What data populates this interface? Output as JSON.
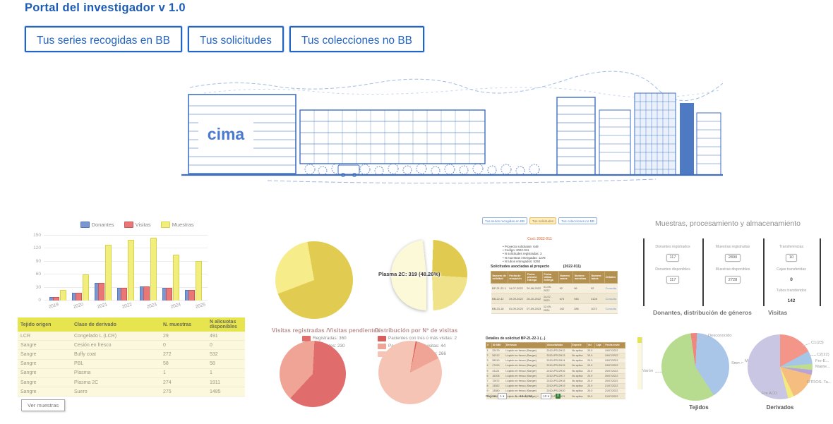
{
  "header": {
    "title": "Portal del investigador v 1.0"
  },
  "theme": {
    "accent_blue": "#2264c2",
    "header_yellow": "#e6e44f",
    "table_brown": "#b3904f"
  },
  "tabs": [
    {
      "label": "Tus series recogidas en BB"
    },
    {
      "label": "Tus solicitudes"
    },
    {
      "label": "Tus colecciones no BB"
    }
  ],
  "banner": {
    "logo": "cima"
  },
  "chart_data": [
    {
      "type": "bar",
      "categories": [
        "2019",
        "2020",
        "2021",
        "2022",
        "2023",
        "2024",
        "2025"
      ],
      "series": [
        {
          "name": "Donantes",
          "color": "#7b97cf",
          "border": "#5577bb",
          "values": [
            8,
            18,
            40,
            30,
            32,
            29,
            24
          ]
        },
        {
          "name": "Visitas",
          "color": "#e87777",
          "border": "#cc5555",
          "values": [
            8,
            18,
            40,
            30,
            33,
            29,
            24
          ]
        },
        {
          "name": "Muestras",
          "color": "#f2ee7d",
          "border": "#d8d24a",
          "values": [
            25,
            61,
            129,
            140,
            145,
            106,
            91
          ]
        }
      ],
      "ylim": [
        0,
        150
      ],
      "yticks": [
        0,
        30,
        60,
        90,
        120,
        150
      ],
      "legend_position": "top",
      "grid": true
    },
    {
      "type": "pie",
      "name": "muestras-pie",
      "slices": [
        {
          "label": "",
          "value": 72,
          "color": "#e2cb51"
        },
        {
          "label": "",
          "value": 28,
          "color": "#f6ec8a"
        }
      ]
    },
    {
      "type": "pie",
      "name": "plasma-2c-pie",
      "tooltip": "Plasma 2C: 319 (48.26%)",
      "slices": [
        {
          "label": "Plasma 2C",
          "value": 48.26,
          "color": "#fcf9d8",
          "exploded": true
        },
        {
          "label": "",
          "value": 27,
          "color": "#e1ca50"
        },
        {
          "label": "",
          "value": 24.74,
          "color": "#efe289"
        }
      ]
    },
    {
      "type": "pie",
      "name": "visitas-registradas-pendientes",
      "title": "Visitas registradas /Visitas pendientes",
      "slices": [
        {
          "label": "Registradas:  360",
          "value": 360,
          "color": "#e06c6c"
        },
        {
          "label": "Pendientes: 230",
          "value": 230,
          "color": "#efa496"
        }
      ]
    },
    {
      "type": "pie",
      "name": "distribucion-visitas",
      "title": "Distribución por Nº de visitas",
      "slices": [
        {
          "label": "Pacientes con  tres o más visitas: 2",
          "value": 2,
          "color": "#d95f5f"
        },
        {
          "label": "Pacientes con dos visitas: 44",
          "value": 44,
          "color": "#efa496"
        },
        {
          "label": "Pacientes con una visita: 266",
          "value": 266,
          "color": "#f6c4b4"
        }
      ]
    },
    {
      "type": "pie",
      "name": "donantes-generos",
      "title": "Donantes, distribución de géneros",
      "slices": [
        {
          "label": "Desconocido",
          "value": 3,
          "color": "#f1867e"
        },
        {
          "label": "Mujer",
          "value": 40,
          "color": "#a9c6e8"
        },
        {
          "label": "Varón",
          "value": 57,
          "color": "#b7dc8f"
        }
      ]
    },
    {
      "type": "pie",
      "name": "derivados",
      "slices": [
        {
          "label": "C1(23)",
          "value": 17,
          "color": "#f4958a"
        },
        {
          "label": "C2(22)",
          "value": 6.5,
          "color": "#a6c6e8"
        },
        {
          "label": "Fre-E...",
          "value": 3,
          "color": "#bfdd8e"
        },
        {
          "label": "Mante...",
          "value": 2.5,
          "color": "#b9a4d8"
        },
        {
          "label": "OTROS. Ta...",
          "value": 14,
          "color": "#f6bd80"
        },
        {
          "label": "Fre ACD",
          "value": 3,
          "color": "#f4e97f"
        },
        {
          "label": "Sue...",
          "value": 54,
          "color": "#c9c6e3"
        }
      ]
    }
  ],
  "samples_table": {
    "headers": [
      "Tejido origen",
      "Clase de derivado",
      "N. muestras",
      "N alicuotas disponibles"
    ],
    "rows": [
      [
        "LCR",
        "Congelado L (LCR)",
        "29",
        "491"
      ],
      [
        "Sangre",
        "Cesión en fresco",
        "0",
        "0"
      ],
      [
        "Sangre",
        "Buffy coat",
        "272",
        "532"
      ],
      [
        "Sangre",
        "PBL",
        "58",
        "58"
      ],
      [
        "Sangre",
        "Plasma",
        "1",
        "1"
      ],
      [
        "Sangre",
        "Plasma 2C",
        "274",
        "1911"
      ],
      [
        "Sangre",
        "Suero",
        "275",
        "1485"
      ]
    ],
    "action": "Ver muestras"
  },
  "mini_portal": {
    "tabs": [
      {
        "label": "Tus series recogidas en BB",
        "active": false
      },
      {
        "label": "Tus solicitudes",
        "active": true
      },
      {
        "label": "Tus colecciones no BB",
        "active": false
      }
    ],
    "code_title": "Cod: 2022-011",
    "bullets": [
      "Proyecto solicitante: 649",
      "Codigo: 2022-011",
      "N solicitudes registradas: 3",
      "N muestras entregadas: 1278",
      "N tubos entregados: 5292"
    ],
    "assoc_title": "Solicitudes asociadas al proyecto",
    "assoc_code": "(2022-011)",
    "table": {
      "headers": [
        "Numero de solicitud",
        "Fecha de recepción",
        "Fecha primera entrega",
        "Fecha última entrega",
        "Numero casos",
        "Numero muestras",
        "Numero tubos",
        "Detalles"
      ],
      "rows": [
        [
          "BP-21-22-1",
          "14-07-2022",
          "20-06-2022",
          "01-09-2022",
          "92",
          "96",
          "92",
          "Consulta"
        ],
        [
          "BB-22-42",
          "19-09-2022",
          "26-10-2022",
          "14-07-2023",
          "675",
          "946",
          "4128",
          "Consulta"
        ],
        [
          "BB-23-18",
          "01-09-2023",
          "07-09-2023",
          "12-09-2024",
          "142",
          "286",
          "1072",
          "Consulta"
        ]
      ]
    }
  },
  "details_section": {
    "title": "Detalles de solicitud BP-21-22-1 (...)",
    "table": {
      "headers": [
        "#",
        "ID BBK",
        "Derivado",
        "Alícuota/tubo",
        "Especie",
        "Vol",
        "Caja",
        "Fecha envío"
      ],
      "rows": [
        [
          "1",
          "22479",
          "Líquido en fresco (Sangre)",
          "2012LPS12H12",
          "No aplica",
          "20.0",
          "",
          "19/07/2022"
        ],
        [
          "2",
          "26212",
          "Líquido en fresco (Sangre)",
          "2012LPS12H13",
          "No aplica",
          "20.0",
          "",
          "19/07/2022"
        ],
        [
          "3",
          "28213",
          "Líquido en fresco (Sangre)",
          "2012LPS12H14",
          "No aplica",
          "20.0",
          "",
          "19/07/2022"
        ],
        [
          "4",
          "27499",
          "Líquido en fresco (Sangre)",
          "2012LPS12H15",
          "No aplica",
          "20.0",
          "",
          "19/07/2022"
        ],
        [
          "5",
          "41123",
          "Líquido en fresco (Sangre)",
          "2012LPS12H16",
          "No aplica",
          "20.0",
          "",
          "20/07/2022"
        ],
        [
          "6",
          "16208",
          "Líquido en fresco (Sangre)",
          "2012LPS12H17",
          "No aplica",
          "20.0",
          "",
          "20/07/2022"
        ],
        [
          "7",
          "72672",
          "Líquido en fresco (Sangre)",
          "2012LPS12H18",
          "No aplica",
          "20.0",
          "",
          "20/07/2022"
        ],
        [
          "8",
          "13582",
          "Líquido en fresco (Sangre)",
          "2012LPS12H19",
          "No aplica",
          "20.0",
          "",
          "21/07/2022"
        ],
        [
          "9",
          "13580",
          "Líquido en fresco (Sangre)",
          "2012LPS12H20",
          "No aplica",
          "20.0",
          "",
          "21/07/2022"
        ],
        [
          "10",
          "13581",
          "Líquido en fresco (Sangre)",
          "2012LPS12H21",
          "No aplica",
          "20.0",
          "",
          "21/07/2022"
        ]
      ]
    },
    "pagination": {
      "label": "Página",
      "page": "1",
      "first": "«",
      "prev": "‹",
      "range": "1 - 10 de 96",
      "next": "›",
      "last": "»",
      "size": "10"
    }
  },
  "storage": {
    "title": "Muestras, procesamiento y almacenamiento",
    "columns": [
      {
        "items": [
          {
            "label": "Donantes registrados",
            "value": "117",
            "boxed": true
          },
          {
            "label": "Donantes disponibles",
            "value": "117",
            "boxed": true
          }
        ]
      },
      {
        "items": [
          {
            "label": "Muestras registradas",
            "value": "2890",
            "boxed": true
          },
          {
            "label": "Muestras disponibles",
            "value": "2728",
            "boxed": true
          }
        ]
      },
      {
        "items": [
          {
            "label": "Transferencias",
            "value": "10",
            "boxed": true
          },
          {
            "label": "Cajas transferidas",
            "value": "0",
            "boxed": false
          },
          {
            "label": "Tubos transferidos",
            "value": "142",
            "boxed": false
          }
        ]
      }
    ],
    "genders_title": "Donantes, distribución de géneros",
    "visits_title": "Visitas",
    "tejidos_caption": "Tejidos",
    "derivados_caption": "Derivados"
  }
}
